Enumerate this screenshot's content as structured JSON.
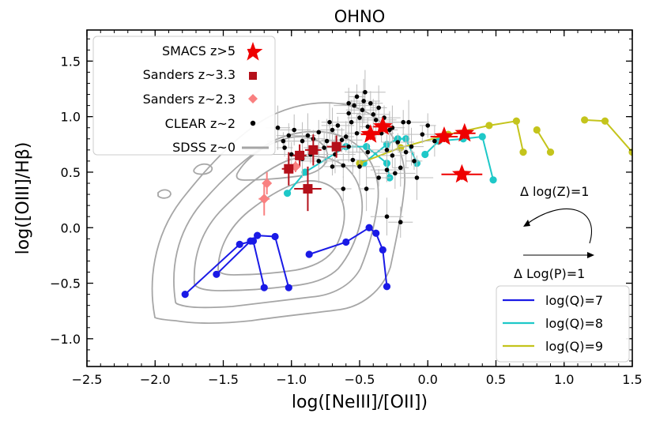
{
  "chart_data": {
    "type": "scatter",
    "title": "OHNO",
    "xlabel": "log([NeIII]/[OII])",
    "ylabel": "log([OIII]/Hβ)",
    "xlim": [
      -2.5,
      1.5
    ],
    "ylim": [
      -1.25,
      1.78
    ],
    "xticks": [
      -2.5,
      -2.0,
      -1.5,
      -1.0,
      -0.5,
      0.0,
      0.5,
      1.0,
      1.5
    ],
    "xtick_labels": [
      "−2.5",
      "−2.0",
      "−1.5",
      "−1.0",
      "−0.5",
      "0.0",
      "0.5",
      "1.0",
      "1.5"
    ],
    "yticks": [
      -1.0,
      -0.5,
      0.0,
      0.5,
      1.0,
      1.5
    ],
    "ytick_labels": [
      "−1.0",
      "−0.5",
      "0.0",
      "0.5",
      "1.0",
      "1.5"
    ],
    "series": [
      {
        "name": "SMACS z>5",
        "label": "SMACS  z>5",
        "marker": "star",
        "color": "#ee0000",
        "points": [
          {
            "x": -0.42,
            "y": 0.84,
            "xerr": 0.07,
            "yerr": 0.05
          },
          {
            "x": -0.33,
            "y": 0.91,
            "xerr": 0.07,
            "yerr": 0.05
          },
          {
            "x": 0.12,
            "y": 0.82,
            "xerr": 0.1,
            "yerr": 0.05
          },
          {
            "x": 0.27,
            "y": 0.85,
            "xerr": 0.08,
            "yerr": 0.05
          },
          {
            "x": 0.25,
            "y": 0.48,
            "xerr": 0.15,
            "yerr": 0.05
          }
        ]
      },
      {
        "name": "Sanders z~3.3",
        "label": "Sanders  z~3.3",
        "marker": "square",
        "color": "#b4101a",
        "points": [
          {
            "x": -1.02,
            "y": 0.53,
            "xerr": 0.05,
            "yerr": 0.15
          },
          {
            "x": -0.94,
            "y": 0.65,
            "xerr": 0.05,
            "yerr": 0.1
          },
          {
            "x": -0.84,
            "y": 0.7,
            "xerr": 0.06,
            "yerr": 0.14
          },
          {
            "x": -0.67,
            "y": 0.73,
            "xerr": 0.07,
            "yerr": 0.1
          },
          {
            "x": -0.88,
            "y": 0.35,
            "xerr": 0.1,
            "yerr": 0.2
          }
        ]
      },
      {
        "name": "Sanders z~2.3",
        "label": "Sanders  z~2.3",
        "marker": "diamond",
        "color": "#f98080",
        "points": [
          {
            "x": -1.18,
            "y": 0.4,
            "xerr": 0.03,
            "yerr": 0.1
          },
          {
            "x": -1.2,
            "y": 0.26,
            "xerr": 0.04,
            "yerr": 0.15
          },
          {
            "x": -0.97,
            "y": 0.55,
            "xerr": 0.03,
            "yerr": 0.05
          }
        ]
      },
      {
        "name": "CLEAR z~2",
        "label": "CLEAR  z~2",
        "marker": "dot",
        "color": "#000000",
        "points": [
          {
            "x": -1.05,
            "y": 0.72
          },
          {
            "x": -1.02,
            "y": 0.83
          },
          {
            "x": -0.98,
            "y": 0.88
          },
          {
            "x": -0.92,
            "y": 0.78
          },
          {
            "x": -0.88,
            "y": 0.83
          },
          {
            "x": -0.84,
            "y": 0.8
          },
          {
            "x": -0.8,
            "y": 0.86
          },
          {
            "x": -0.76,
            "y": 0.72
          },
          {
            "x": -0.72,
            "y": 0.95
          },
          {
            "x": -0.7,
            "y": 0.88
          },
          {
            "x": -0.66,
            "y": 0.92
          },
          {
            "x": -0.63,
            "y": 0.79
          },
          {
            "x": -0.6,
            "y": 0.82
          },
          {
            "x": -0.58,
            "y": 1.03
          },
          {
            "x": -0.56,
            "y": 0.95
          },
          {
            "x": -0.54,
            "y": 1.1
          },
          {
            "x": -0.52,
            "y": 1.18
          },
          {
            "x": -0.5,
            "y": 0.99
          },
          {
            "x": -0.48,
            "y": 1.06
          },
          {
            "x": -0.46,
            "y": 1.22
          },
          {
            "x": -0.44,
            "y": 0.91
          },
          {
            "x": -0.42,
            "y": 1.12
          },
          {
            "x": -0.4,
            "y": 1.02
          },
          {
            "x": -0.38,
            "y": 0.97
          },
          {
            "x": -0.36,
            "y": 1.08
          },
          {
            "x": -0.34,
            "y": 0.85
          },
          {
            "x": -0.32,
            "y": 0.99
          },
          {
            "x": -0.3,
            "y": 0.7
          },
          {
            "x": -0.28,
            "y": 0.88
          },
          {
            "x": -0.26,
            "y": 0.9
          },
          {
            "x": -0.22,
            "y": 0.77
          },
          {
            "x": -0.18,
            "y": 0.95
          },
          {
            "x": -0.16,
            "y": 0.68
          },
          {
            "x": -0.12,
            "y": 0.73
          },
          {
            "x": -0.08,
            "y": 0.45
          },
          {
            "x": -0.04,
            "y": 0.84
          },
          {
            "x": 0.0,
            "y": 0.92
          },
          {
            "x": 0.05,
            "y": 0.78
          },
          {
            "x": -0.92,
            "y": 0.62
          },
          {
            "x": -0.8,
            "y": 0.6
          },
          {
            "x": -0.7,
            "y": 0.55
          },
          {
            "x": -0.62,
            "y": 0.56
          },
          {
            "x": -0.55,
            "y": 0.61
          },
          {
            "x": -0.5,
            "y": 0.55
          },
          {
            "x": -0.45,
            "y": 0.35
          },
          {
            "x": -0.36,
            "y": 0.45
          },
          {
            "x": -0.3,
            "y": 0.52
          },
          {
            "x": -0.24,
            "y": 0.49
          },
          {
            "x": -0.2,
            "y": 0.54
          },
          {
            "x": -1.1,
            "y": 0.9
          },
          {
            "x": -1.06,
            "y": 0.78
          },
          {
            "x": -1.0,
            "y": 0.66
          },
          {
            "x": -0.58,
            "y": 0.73
          },
          {
            "x": -0.52,
            "y": 0.85
          },
          {
            "x": -0.47,
            "y": 1.14
          },
          {
            "x": -0.44,
            "y": 0.68
          },
          {
            "x": -0.62,
            "y": 0.35
          },
          {
            "x": -0.2,
            "y": 0.05
          },
          {
            "x": -0.3,
            "y": 0.1
          },
          {
            "x": -0.14,
            "y": 0.95
          },
          {
            "x": -0.1,
            "y": 0.6
          },
          {
            "x": -0.26,
            "y": 0.65
          },
          {
            "x": -0.58,
            "y": 1.12
          },
          {
            "x": -0.68,
            "y": 0.66
          },
          {
            "x": -0.74,
            "y": 0.78
          },
          {
            "x": -0.86,
            "y": 0.66
          }
        ]
      }
    ],
    "models": [
      {
        "name": "log(Q)=7",
        "label": "log(Q)=7",
        "color": "#1a1ae6",
        "tracks": [
          [
            [
              -1.78,
              -0.6
            ],
            [
              -1.38,
              -0.15
            ],
            [
              -1.28,
              -0.12
            ],
            [
              -1.2,
              -0.54
            ]
          ],
          [
            [
              -1.55,
              -0.42
            ],
            [
              -1.3,
              -0.12
            ],
            [
              -1.25,
              -0.07
            ],
            [
              -1.12,
              -0.08
            ],
            [
              -1.02,
              -0.54
            ]
          ],
          [
            [
              -0.87,
              -0.24
            ],
            [
              -0.6,
              -0.13
            ],
            [
              -0.43,
              0.0
            ],
            [
              -0.38,
              -0.05
            ],
            [
              -0.33,
              -0.2
            ],
            [
              -0.3,
              -0.53
            ]
          ]
        ]
      },
      {
        "name": "log(Q)=8",
        "label": "log(Q)=8",
        "color": "#1ec8c8",
        "tracks": [
          [
            [
              -1.03,
              0.31
            ],
            [
              -0.9,
              0.5
            ],
            [
              -0.6,
              0.73
            ],
            [
              -0.45,
              0.73
            ],
            [
              -0.3,
              0.58
            ],
            [
              -0.28,
              0.45
            ]
          ],
          [
            [
              -0.47,
              0.58
            ],
            [
              -0.3,
              0.75
            ],
            [
              -0.22,
              0.8
            ],
            [
              -0.16,
              0.8
            ],
            [
              -0.08,
              0.58
            ]
          ],
          [
            [
              -0.02,
              0.66
            ],
            [
              0.08,
              0.78
            ],
            [
              0.26,
              0.8
            ],
            [
              0.4,
              0.82
            ],
            [
              0.48,
              0.43
            ]
          ]
        ]
      },
      {
        "name": "log(Q)=9",
        "label": "log(Q)=9",
        "color": "#c4c41c",
        "tracks": [
          [
            [
              -0.5,
              0.58
            ],
            [
              -0.2,
              0.72
            ],
            [
              0.15,
              0.84
            ],
            [
              0.45,
              0.92
            ],
            [
              0.65,
              0.96
            ],
            [
              0.7,
              0.68
            ]
          ],
          [
            [
              0.8,
              0.88
            ],
            [
              0.9,
              0.68
            ]
          ],
          [
            [
              1.15,
              0.97
            ],
            [
              1.3,
              0.96
            ],
            [
              1.5,
              0.68
            ]
          ]
        ]
      }
    ],
    "sdss_label": "SDSS  z~0",
    "annotations": [
      "Δ log(Z)=1",
      "Δ Log(P)=1"
    ]
  },
  "colors": {
    "sdss": "#a6a6a6",
    "errorbar": "#bcbcbc"
  }
}
